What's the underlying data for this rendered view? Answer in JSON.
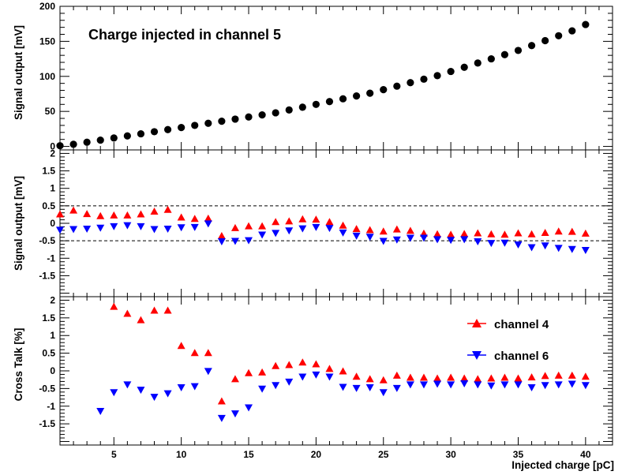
{
  "colors": {
    "channel4": "#ff0000",
    "channel6": "#0000ff",
    "channel5": "#000000",
    "frame": "#000000"
  },
  "chart_data": [
    {
      "type": "scatter",
      "id": "top",
      "title": "",
      "annotation": "Charge injected in channel 5",
      "ylabel": "Signal output [mV]",
      "xlabel": "",
      "xlim": [
        1,
        42
      ],
      "ylim": [
        -5,
        200
      ],
      "yticks": [
        0,
        50,
        100,
        150,
        200
      ],
      "ytick_labels": [
        "0",
        "50",
        "100",
        "150",
        "200"
      ],
      "series": [
        {
          "name": "",
          "marker": "circle",
          "x": [
            1,
            2,
            3,
            4,
            5,
            6,
            7,
            8,
            9,
            10,
            11,
            12,
            13,
            14,
            15,
            16,
            17,
            18,
            19,
            20,
            21,
            22,
            23,
            24,
            25,
            26,
            27,
            28,
            29,
            30,
            31,
            32,
            33,
            34,
            35,
            36,
            37,
            38,
            39,
            40
          ],
          "values": [
            1,
            3,
            6,
            9,
            12,
            15,
            18,
            21,
            24,
            27,
            30,
            33,
            36,
            39,
            42,
            45,
            48,
            52,
            56,
            60,
            64,
            68,
            72,
            76,
            81,
            86,
            91,
            96,
            101,
            107,
            113,
            119,
            125,
            131,
            137,
            144,
            151,
            158,
            165,
            174
          ]
        }
      ]
    },
    {
      "type": "scatter",
      "id": "middle",
      "title": "",
      "ylabel": "Signal output [mV]",
      "xlabel": "",
      "xlim": [
        1,
        42
      ],
      "ylim": [
        -2.1,
        2.1
      ],
      "yticks": [
        -1.5,
        -1,
        -0.5,
        0,
        0.5,
        1,
        1.5,
        2
      ],
      "ytick_labels": [
        "-1.5",
        "-1",
        "-0.5",
        "0",
        "0.5",
        "1",
        "1.5",
        "2"
      ],
      "reference_lines": [
        0.5,
        -0.5
      ],
      "series": [
        {
          "name": "channel 4",
          "marker": "triangle-up",
          "x": [
            1,
            2,
            3,
            4,
            5,
            6,
            7,
            8,
            9,
            10,
            11,
            12,
            13,
            14,
            15,
            16,
            17,
            18,
            19,
            20,
            21,
            22,
            23,
            24,
            25,
            26,
            27,
            28,
            29,
            30,
            31,
            32,
            33,
            34,
            35,
            36,
            37,
            38,
            39,
            40
          ],
          "values": [
            0.27,
            0.38,
            0.28,
            0.22,
            0.24,
            0.24,
            0.27,
            0.35,
            0.4,
            0.18,
            0.14,
            0.15,
            -0.35,
            -0.12,
            -0.07,
            -0.07,
            0.05,
            0.07,
            0.13,
            0.12,
            0.05,
            -0.05,
            -0.15,
            -0.18,
            -0.22,
            -0.16,
            -0.2,
            -0.28,
            -0.3,
            -0.31,
            -0.29,
            -0.27,
            -0.3,
            -0.31,
            -0.27,
            -0.3,
            -0.26,
            -0.22,
            -0.23,
            -0.28
          ]
        },
        {
          "name": "channel 6",
          "marker": "triangle-down",
          "x": [
            1,
            2,
            3,
            4,
            5,
            6,
            7,
            8,
            9,
            10,
            11,
            12,
            13,
            14,
            15,
            16,
            17,
            18,
            19,
            20,
            21,
            22,
            23,
            24,
            25,
            26,
            27,
            28,
            29,
            30,
            31,
            32,
            33,
            34,
            35,
            36,
            37,
            38,
            39,
            40
          ],
          "values": [
            -0.2,
            -0.18,
            -0.17,
            -0.14,
            -0.1,
            -0.07,
            -0.1,
            -0.18,
            -0.17,
            -0.13,
            -0.12,
            -0.02,
            -0.53,
            -0.52,
            -0.5,
            -0.34,
            -0.29,
            -0.22,
            -0.16,
            -0.12,
            -0.15,
            -0.28,
            -0.37,
            -0.4,
            -0.52,
            -0.48,
            -0.43,
            -0.43,
            -0.47,
            -0.49,
            -0.47,
            -0.53,
            -0.58,
            -0.57,
            -0.62,
            -0.7,
            -0.65,
            -0.72,
            -0.75,
            -0.78
          ]
        }
      ]
    },
    {
      "type": "scatter",
      "id": "bottom",
      "title": "",
      "ylabel": "Cross Talk [%]",
      "xlabel": "Injected charge [pC]",
      "xlim": [
        1,
        42
      ],
      "ylim": [
        -2.1,
        2.1
      ],
      "xticks": [
        5,
        10,
        15,
        20,
        25,
        30,
        35,
        40
      ],
      "xtick_labels": [
        "5",
        "10",
        "15",
        "20",
        "25",
        "30",
        "35",
        "40"
      ],
      "yticks": [
        -1.5,
        -1,
        -0.5,
        0,
        0.5,
        1,
        1.5,
        2
      ],
      "ytick_labels": [
        "-1.5",
        "-1",
        "-0.5",
        "0",
        "0.5",
        "1",
        "1.5",
        "2"
      ],
      "legend": {
        "placement": "right",
        "entries": [
          "channel 4",
          "channel 6"
        ]
      },
      "series": [
        {
          "name": "channel 4",
          "marker": "triangle-up",
          "x": [
            5,
            6,
            7,
            8,
            9,
            10,
            11,
            12,
            13,
            14,
            15,
            16,
            17,
            18,
            19,
            20,
            21,
            22,
            23,
            24,
            25,
            26,
            27,
            28,
            29,
            30,
            31,
            32,
            33,
            34,
            35,
            36,
            37,
            38,
            39,
            40
          ],
          "values": [
            1.83,
            1.63,
            1.45,
            1.72,
            1.72,
            0.72,
            0.52,
            0.52,
            -0.85,
            -0.22,
            -0.05,
            -0.03,
            0.15,
            0.18,
            0.25,
            0.2,
            0.07,
            0.0,
            -0.15,
            -0.22,
            -0.25,
            -0.12,
            -0.18,
            -0.18,
            -0.2,
            -0.18,
            -0.2,
            -0.22,
            -0.2,
            -0.18,
            -0.2,
            -0.17,
            -0.13,
            -0.12,
            -0.12,
            -0.15
          ]
        },
        {
          "name": "channel 6",
          "marker": "triangle-down",
          "x": [
            4,
            5,
            6,
            7,
            8,
            9,
            10,
            11,
            12,
            13,
            14,
            15,
            16,
            17,
            18,
            19,
            20,
            21,
            22,
            23,
            24,
            25,
            26,
            27,
            28,
            29,
            30,
            31,
            32,
            33,
            34,
            35,
            36,
            37,
            38,
            39,
            40
          ],
          "values": [
            -1.15,
            -0.62,
            -0.4,
            -0.55,
            -0.75,
            -0.65,
            -0.48,
            -0.45,
            -0.02,
            -1.35,
            -1.22,
            -1.05,
            -0.52,
            -0.42,
            -0.32,
            -0.18,
            -0.12,
            -0.18,
            -0.47,
            -0.5,
            -0.48,
            -0.62,
            -0.5,
            -0.4,
            -0.4,
            -0.38,
            -0.4,
            -0.37,
            -0.4,
            -0.43,
            -0.4,
            -0.4,
            -0.48,
            -0.42,
            -0.4,
            -0.38,
            -0.42
          ]
        }
      ]
    }
  ]
}
